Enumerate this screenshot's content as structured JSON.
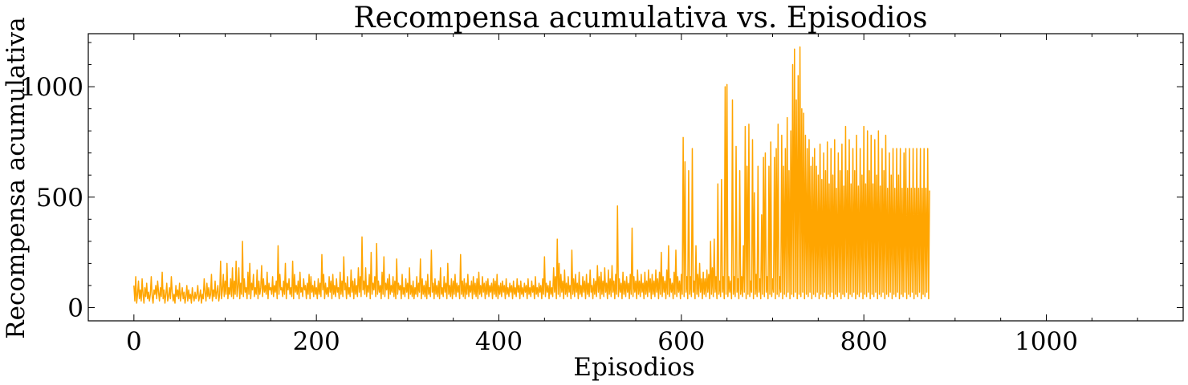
{
  "chart_data": {
    "type": "line",
    "title": "Recompensa acumulativa vs. Episodios",
    "xlabel": "Episodios",
    "ylabel": "Recompensa acumulativa",
    "xlim": [
      -50,
      1150
    ],
    "ylim": [
      -60,
      1240
    ],
    "x_ticks": [
      0,
      200,
      400,
      600,
      800,
      1000
    ],
    "y_ticks": [
      0,
      500,
      1000
    ],
    "x_minor_step": 50,
    "y_minor_step": 100,
    "grid": false,
    "legend": "none",
    "line_color": "#ffa500",
    "series": [
      {
        "x_start": 0,
        "x_step": 1,
        "values": [
          100,
          30,
          140,
          20,
          60,
          120,
          40,
          80,
          30,
          130,
          60,
          20,
          90,
          50,
          110,
          40,
          70,
          30,
          60,
          140,
          50,
          20,
          80,
          60,
          100,
          40,
          120,
          70,
          30,
          90,
          50,
          160,
          40,
          80,
          20,
          60,
          110,
          30,
          50,
          90,
          40,
          140,
          70,
          30,
          60,
          20,
          100,
          50,
          80,
          40,
          110,
          30,
          60,
          90,
          40,
          70,
          20,
          50,
          100,
          30,
          80,
          40,
          60,
          20,
          90,
          50,
          30,
          70,
          40,
          60,
          100,
          30,
          50,
          80,
          20,
          60,
          40,
          130,
          70,
          30,
          110,
          50,
          90,
          40,
          60,
          150,
          30,
          80,
          50,
          120,
          40,
          70,
          100,
          30,
          60,
          210,
          40,
          80,
          150,
          50,
          120,
          60,
          200,
          40,
          90,
          60,
          130,
          50,
          180,
          40,
          120,
          60,
          210,
          50,
          90,
          180,
          40,
          110,
          60,
          300,
          50,
          130,
          70,
          90,
          40,
          160,
          60,
          200,
          40,
          110,
          80,
          150,
          50,
          90,
          60,
          170,
          40,
          120,
          60,
          90,
          190,
          50,
          130,
          70,
          100,
          60,
          160,
          40,
          110,
          80,
          90,
          60,
          140,
          50,
          100,
          70,
          120,
          40,
          280,
          60,
          150,
          80,
          90,
          50,
          120,
          60,
          200,
          40,
          110,
          80,
          130,
          60,
          90,
          50,
          210,
          40,
          150,
          70,
          100,
          60,
          120,
          40,
          160,
          70,
          90,
          50,
          130,
          80,
          100,
          40,
          110,
          60,
          150,
          40,
          140,
          70,
          100,
          50,
          120,
          60,
          90,
          40,
          130,
          60,
          110,
          50,
          240,
          80,
          150,
          40,
          110,
          60,
          90,
          50,
          140,
          70,
          120,
          40,
          150,
          60,
          100,
          50,
          130,
          70,
          90,
          40,
          160,
          60,
          120,
          50,
          230,
          80,
          110,
          40,
          140,
          60,
          90,
          50,
          170,
          70,
          120,
          40,
          130,
          60,
          100,
          50,
          180,
          70,
          140,
          50,
          320,
          80,
          120,
          60,
          180,
          50,
          100,
          70,
          150,
          40,
          250,
          60,
          110,
          80,
          140,
          50,
          290,
          60,
          120,
          70,
          100,
          40,
          160,
          60,
          230,
          50,
          110,
          80,
          130,
          40,
          150,
          60,
          100,
          70,
          140,
          50,
          120,
          40,
          220,
          60,
          110,
          80,
          100,
          40,
          150,
          60,
          90,
          50,
          130,
          70,
          110,
          40,
          180,
          60,
          100,
          50,
          120,
          40,
          90,
          60,
          140,
          50,
          110,
          70,
          220,
          40,
          130,
          60,
          100,
          50,
          120,
          40,
          150,
          60,
          90,
          50,
          260,
          70,
          110,
          40,
          130,
          60,
          100,
          50,
          120,
          40,
          180,
          60,
          90,
          50,
          140,
          70,
          110,
          40,
          200,
          60,
          100,
          50,
          130,
          40,
          120,
          60,
          150,
          50,
          110,
          70,
          100,
          40,
          240,
          60,
          120,
          50,
          130,
          40,
          110,
          60,
          150,
          50,
          100,
          70,
          120,
          40,
          140,
          60,
          110,
          50,
          130,
          40,
          160,
          60,
          100,
          50,
          140,
          70,
          110,
          40,
          120,
          60,
          130,
          50,
          100,
          70,
          110,
          40,
          130,
          60,
          120,
          50,
          150,
          40,
          100,
          60,
          110,
          50,
          120,
          70,
          100,
          40,
          130,
          60,
          90,
          50,
          110,
          70,
          100,
          40,
          120,
          60,
          90,
          50,
          130,
          70,
          100,
          40,
          120,
          60,
          90,
          50,
          110,
          70,
          100,
          40,
          130,
          60,
          90,
          50,
          120,
          70,
          100,
          40,
          140,
          60,
          90,
          50,
          110,
          70,
          100,
          40,
          130,
          60,
          230,
          50,
          110,
          70,
          100,
          40,
          120,
          60,
          90,
          50,
          180,
          70,
          140,
          40,
          310,
          60,
          200,
          50,
          150,
          70,
          120,
          40,
          170,
          60,
          110,
          50,
          140,
          70,
          100,
          40,
          260,
          60,
          130,
          50,
          150,
          70,
          110,
          40,
          160,
          60,
          100,
          50,
          140,
          70,
          120,
          40,
          150,
          60,
          110,
          50,
          170,
          70,
          100,
          40,
          130,
          60,
          120,
          50,
          190,
          70,
          140,
          40,
          160,
          60,
          120,
          50,
          180,
          70,
          110,
          40,
          170,
          60,
          130,
          50,
          190,
          70,
          120,
          40,
          150,
          60,
          460,
          50,
          130,
          70,
          110,
          40,
          160,
          60,
          120,
          50,
          140,
          70,
          110,
          40,
          150,
          60,
          360,
          50,
          140,
          70,
          120,
          40,
          170,
          60,
          120,
          50,
          150,
          70,
          110,
          40,
          160,
          60,
          120,
          50,
          170,
          70,
          130,
          40,
          150,
          60,
          120,
          50,
          170,
          70,
          130,
          40,
          160,
          60,
          250,
          50,
          140,
          70,
          120,
          40,
          170,
          60,
          280,
          50,
          130,
          70,
          110,
          40,
          160,
          60,
          260,
          50,
          140,
          70,
          120,
          40,
          150,
          60,
          770,
          50,
          660,
          70,
          140,
          40,
          620,
          60,
          140,
          50,
          720,
          70,
          120,
          40,
          280,
          60,
          150,
          50,
          200,
          70,
          130,
          40,
          160,
          60,
          130,
          50,
          170,
          70,
          150,
          40,
          300,
          60,
          180,
          50,
          310,
          70,
          140,
          40,
          560,
          60,
          120,
          50,
          580,
          70,
          140,
          40,
          1000,
          60,
          1010,
          50,
          140,
          70,
          120,
          40,
          940,
          60,
          140,
          50,
          730,
          70,
          130,
          40,
          620,
          60,
          140,
          50,
          280,
          70,
          820,
          40,
          640,
          60,
          830,
          50,
          120,
          70,
          760,
          40,
          520,
          60,
          150,
          50,
          640,
          70,
          130,
          40,
          420,
          60,
          680,
          50,
          700,
          70,
          140,
          40,
          640,
          60,
          750,
          50,
          130,
          70,
          680,
          40,
          720,
          60,
          830,
          50,
          140,
          70,
          780,
          40,
          640,
          60,
          720,
          50,
          860,
          70,
          620,
          40,
          800,
          60,
          1100,
          50,
          1170,
          70,
          940,
          40,
          1050,
          60,
          1180,
          50,
          900,
          70,
          880,
          40,
          780,
          60,
          720,
          50,
          760,
          70,
          640,
          40,
          680,
          60,
          720,
          50,
          640,
          70,
          600,
          40,
          740,
          60,
          580,
          50,
          700,
          70,
          620,
          40,
          750,
          60,
          560,
          50,
          720,
          70,
          600,
          40,
          760,
          60,
          540,
          50,
          700,
          70,
          620,
          40,
          740,
          60,
          550,
          50,
          820,
          70,
          620,
          40,
          760,
          60,
          560,
          50,
          720,
          70,
          620,
          40,
          780,
          60,
          550,
          50,
          720,
          70,
          600,
          40,
          820,
          60,
          560,
          50,
          800,
          70,
          620,
          40,
          780,
          60,
          560,
          50,
          760,
          70,
          600,
          40,
          800,
          60,
          550,
          50,
          720,
          70,
          620,
          40,
          780,
          60,
          540,
          50,
          700,
          70,
          600,
          40,
          720,
          60,
          540,
          50,
          720,
          70,
          600,
          40,
          720,
          60,
          540,
          50,
          700,
          70,
          720,
          40,
          540,
          60,
          720,
          50,
          540,
          70,
          720,
          40,
          540,
          60,
          720,
          50,
          540,
          70,
          720,
          40,
          540,
          60,
          720,
          50,
          540,
          70,
          720,
          40,
          530
        ]
      }
    ]
  }
}
